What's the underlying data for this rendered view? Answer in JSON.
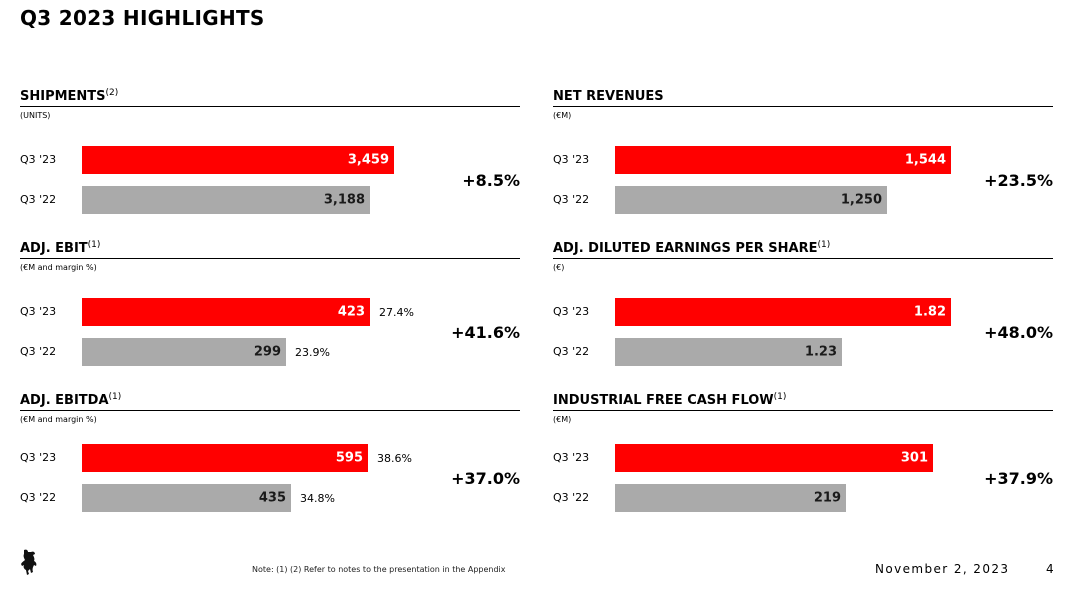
{
  "page": {
    "title": "Q3 2023 HIGHLIGHTS",
    "footnote": "Note: (1) (2) Refer to notes to the presentation in the Appendix",
    "date": "November 2, 2023",
    "page_number": "4",
    "logo_icon": "prancing-horse-icon"
  },
  "colors": {
    "current": "#ff0000",
    "previous": "#aaaaaa"
  },
  "chart_data": [
    {
      "type": "bar",
      "title": "SHIPMENTS",
      "title_note": "(2)",
      "unit": "(UNITS)",
      "categories": [
        "Q3 '23",
        "Q3 '22"
      ],
      "values": [
        3459,
        3188
      ],
      "value_labels": [
        "3,459",
        "3,188"
      ],
      "margins": [],
      "change": "+8.5%"
    },
    {
      "type": "bar",
      "title": "NET REVENUES",
      "title_note": "",
      "unit": "(€M)",
      "categories": [
        "Q3 '23",
        "Q3 '22"
      ],
      "values": [
        1544,
        1250
      ],
      "value_labels": [
        "1,544",
        "1,250"
      ],
      "margins": [],
      "change": "+23.5%"
    },
    {
      "type": "bar",
      "title": "ADJ. EBIT",
      "title_note": "(1)",
      "unit": "(€M and margin %)",
      "categories": [
        "Q3 '23",
        "Q3 '22"
      ],
      "values": [
        423,
        299
      ],
      "value_labels": [
        "423",
        "299"
      ],
      "margins": [
        "27.4%",
        "23.9%"
      ],
      "change": "+41.6%"
    },
    {
      "type": "bar",
      "title": "ADJ. DILUTED EARNINGS PER SHARE",
      "title_note": "(1)",
      "unit": "(€)",
      "categories": [
        "Q3 '23",
        "Q3 '22"
      ],
      "values": [
        1.82,
        1.23
      ],
      "value_labels": [
        "1.82",
        "1.23"
      ],
      "margins": [],
      "change": "+48.0%"
    },
    {
      "type": "bar",
      "title": "ADJ. EBITDA",
      "title_note": "(1)",
      "unit": "(€M and margin %)",
      "categories": [
        "Q3 '23",
        "Q3 '22"
      ],
      "values": [
        595,
        435
      ],
      "value_labels": [
        "595",
        "435"
      ],
      "margins": [
        "38.6%",
        "34.8%"
      ],
      "change": "+37.0%"
    },
    {
      "type": "bar",
      "title": "INDUSTRIAL FREE CASH FLOW",
      "title_note": "(1)",
      "unit": "(€M)",
      "categories": [
        "Q3 '23",
        "Q3 '22"
      ],
      "values": [
        301,
        219
      ],
      "value_labels": [
        "301",
        "219"
      ],
      "margins": [],
      "change": "+37.9%"
    }
  ]
}
